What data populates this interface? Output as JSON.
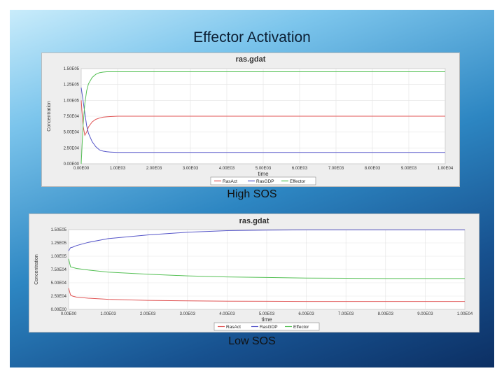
{
  "slide": {
    "title": "Effector Activation",
    "captions": [
      "High SOS",
      "Low SOS"
    ]
  },
  "chart_data": [
    {
      "type": "line",
      "title": "ras.gdat",
      "xlabel": "time",
      "ylabel": "Concentration",
      "xlim": [
        0,
        10000
      ],
      "ylim": [
        0,
        150000
      ],
      "x_ticks": [
        "0.00E00",
        "1.00E03",
        "2.00E03",
        "3.00E03",
        "4.00E03",
        "5.00E03",
        "6.00E03",
        "7.00E03",
        "8.00E03",
        "9.00E03",
        "1.00E04"
      ],
      "y_ticks": [
        "0.00E00",
        "2.50E04",
        "5.00E04",
        "7.50E04",
        "1.00E05",
        "1.25E05",
        "1.50E05"
      ],
      "grid": true,
      "legend": "bottom-center",
      "x": [
        0,
        50,
        100,
        150,
        200,
        300,
        400,
        500,
        600,
        700,
        800,
        900,
        1000,
        2000,
        5000,
        10000
      ],
      "series": [
        {
          "name": "RasAct",
          "color": "#e05555",
          "values": [
            100000,
            60000,
            45000,
            50000,
            58000,
            66000,
            70000,
            72000,
            73500,
            74000,
            74500,
            74800,
            75000,
            75000,
            75000,
            75000
          ]
        },
        {
          "name": "RasGDP",
          "color": "#5555c8",
          "values": [
            120000,
            100000,
            80000,
            60000,
            48000,
            35000,
            27000,
            22000,
            20000,
            19000,
            18500,
            18200,
            18000,
            18000,
            18000,
            18000
          ]
        },
        {
          "name": "Effector",
          "color": "#55c055",
          "values": [
            0,
            60000,
            95000,
            115000,
            126000,
            136000,
            141000,
            143500,
            144500,
            145000,
            145000,
            145000,
            145000,
            145000,
            145000,
            145000
          ]
        }
      ]
    },
    {
      "type": "line",
      "title": "ras.gdat",
      "xlabel": "time",
      "ylabel": "Concentration",
      "xlim": [
        0,
        10000
      ],
      "ylim": [
        0,
        150000
      ],
      "x_ticks": [
        "0.00E00",
        "1.00E03",
        "2.00E03",
        "3.00E03",
        "4.00E03",
        "5.00E03",
        "6.00E03",
        "7.00E03",
        "8.00E03",
        "9.00E03",
        "1.00E04"
      ],
      "y_ticks": [
        "0.00E00",
        "2.50E04",
        "5.00E04",
        "7.50E04",
        "1.00E05",
        "1.25E05",
        "1.50E05"
      ],
      "grid": true,
      "legend": "bottom-center",
      "x": [
        0,
        50,
        100,
        200,
        500,
        1000,
        2000,
        3000,
        4000,
        5000,
        6000,
        7000,
        8000,
        9000,
        10000
      ],
      "series": [
        {
          "name": "RasAct",
          "color": "#e05555",
          "values": [
            40000,
            27000,
            25000,
            23000,
            21000,
            19000,
            17000,
            16000,
            15500,
            15200,
            15000,
            15000,
            15000,
            15000,
            15000
          ]
        },
        {
          "name": "RasGDP",
          "color": "#5555c8",
          "values": [
            110000,
            116000,
            117000,
            120000,
            126000,
            133000,
            140000,
            145000,
            148000,
            149000,
            149500,
            149500,
            149500,
            149500,
            149500
          ]
        },
        {
          "name": "Effector",
          "color": "#55c055",
          "values": [
            95000,
            80000,
            79000,
            77000,
            74000,
            70000,
            66000,
            63000,
            61000,
            60000,
            59000,
            58500,
            58000,
            58000,
            58000
          ]
        }
      ]
    }
  ]
}
